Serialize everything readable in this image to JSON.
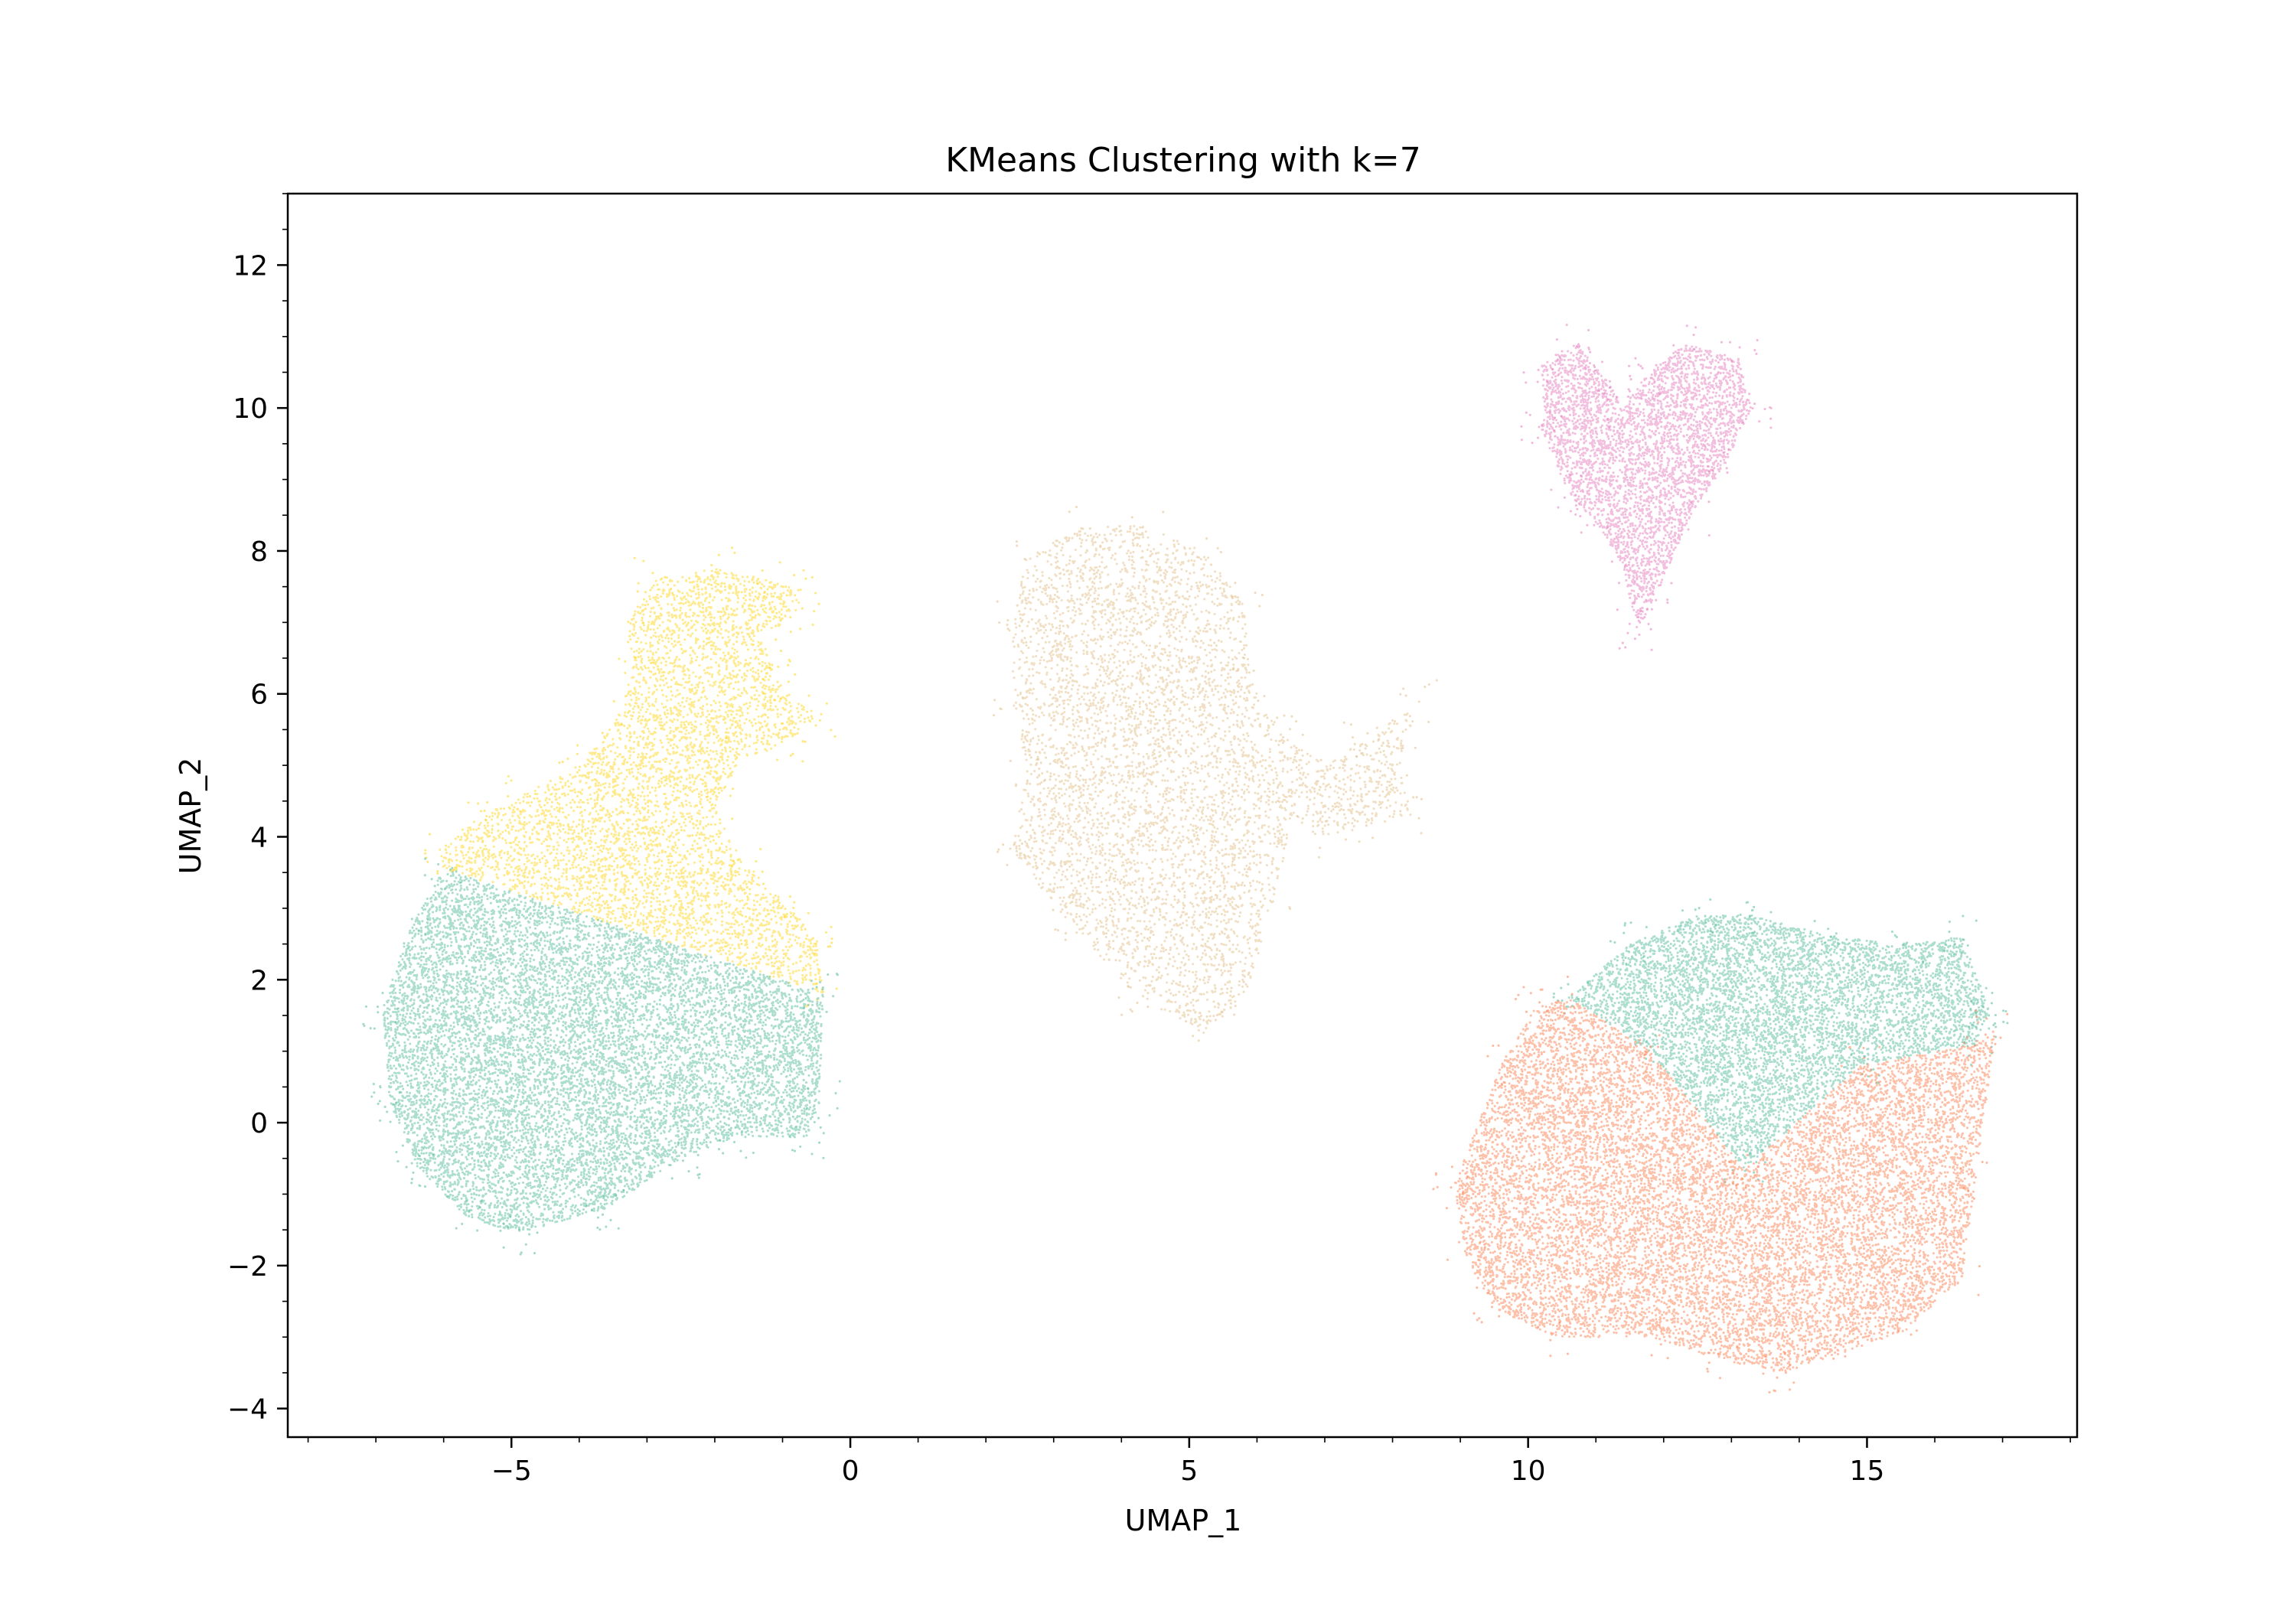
{
  "chart_data": {
    "type": "scatter",
    "title": "KMeans Clustering with k=7",
    "xlabel": "UMAP_1",
    "ylabel": "UMAP_2",
    "xlim": [
      -8.3,
      18.1
    ],
    "ylim": [
      -4.4,
      13.0
    ],
    "xticks": [
      -5,
      0,
      5,
      10,
      15
    ],
    "xtick_labels": [
      "−5",
      "0",
      "5",
      "10",
      "15"
    ],
    "yticks": [
      -4,
      -2,
      0,
      2,
      4,
      6,
      8,
      10,
      12
    ],
    "ytick_labels": [
      "−4",
      "−2",
      "0",
      "2",
      "4",
      "6",
      "8",
      "10",
      "12"
    ],
    "grid": false,
    "legend": "none",
    "point_size": "tiny",
    "series": [
      {
        "color": "#ffd92f",
        "points_approx": 24000,
        "outline": [
          [
            -6.0,
            3.55
          ],
          [
            -6.1,
            3.8
          ],
          [
            -5.6,
            4.2
          ],
          [
            -4.8,
            4.6
          ],
          [
            -4.0,
            5.0
          ],
          [
            -3.5,
            5.6
          ],
          [
            -3.2,
            6.3
          ],
          [
            -3.3,
            7.0
          ],
          [
            -2.9,
            7.6
          ],
          [
            -2.0,
            7.75
          ],
          [
            -1.2,
            7.6
          ],
          [
            -0.7,
            7.5
          ],
          [
            -0.8,
            7.1
          ],
          [
            -1.3,
            6.8
          ],
          [
            -1.1,
            6.2
          ],
          [
            -0.5,
            5.7
          ],
          [
            -0.9,
            5.3
          ],
          [
            -1.6,
            5.1
          ],
          [
            -2.0,
            4.4
          ],
          [
            -1.5,
            3.6
          ],
          [
            -0.9,
            3.0
          ],
          [
            -0.5,
            2.6
          ],
          [
            -0.4,
            1.8
          ],
          [
            -6.0,
            3.55
          ]
        ]
      },
      {
        "color": "#66c2a5",
        "points_approx": 52000,
        "outline": [
          [
            -6.0,
            3.55
          ],
          [
            -6.5,
            2.7
          ],
          [
            -6.9,
            1.6
          ],
          [
            -6.8,
            0.3
          ],
          [
            -6.4,
            -0.6
          ],
          [
            -5.7,
            -1.3
          ],
          [
            -4.9,
            -1.55
          ],
          [
            -3.6,
            -1.2
          ],
          [
            -2.5,
            -0.5
          ],
          [
            -1.7,
            -0.2
          ],
          [
            -0.6,
            -0.2
          ],
          [
            -0.45,
            0.3
          ],
          [
            -0.4,
            1.8
          ],
          [
            -6.0,
            3.55
          ]
        ]
      },
      {
        "color": "#e5c494",
        "points_approx": 26000,
        "outline": [
          [
            2.4,
            7.0
          ],
          [
            2.6,
            7.9
          ],
          [
            3.4,
            8.35
          ],
          [
            4.4,
            8.35
          ],
          [
            5.2,
            8.0
          ],
          [
            5.8,
            7.3
          ],
          [
            5.9,
            6.2
          ],
          [
            6.4,
            5.4
          ],
          [
            7.0,
            5.0
          ],
          [
            7.5,
            5.3
          ],
          [
            8.4,
            5.9
          ],
          [
            8.1,
            5.0
          ],
          [
            8.3,
            4.3
          ],
          [
            7.5,
            4.1
          ],
          [
            6.9,
            4.0
          ],
          [
            6.5,
            4.3
          ],
          [
            6.3,
            3.2
          ],
          [
            5.8,
            1.7
          ],
          [
            5.2,
            1.25
          ],
          [
            4.2,
            1.8
          ],
          [
            3.2,
            2.8
          ],
          [
            2.4,
            3.8
          ],
          [
            2.6,
            5.0
          ],
          [
            2.4,
            5.9
          ],
          [
            2.4,
            7.0
          ]
        ]
      },
      {
        "color": "#e78ac3",
        "points_approx": 18000,
        "outline": [
          [
            10.2,
            9.7
          ],
          [
            10.2,
            10.6
          ],
          [
            10.7,
            10.9
          ],
          [
            11.1,
            10.5
          ],
          [
            11.4,
            10.0
          ],
          [
            11.7,
            10.4
          ],
          [
            12.3,
            10.9
          ],
          [
            13.1,
            10.7
          ],
          [
            13.3,
            10.0
          ],
          [
            12.9,
            9.2
          ],
          [
            12.4,
            8.5
          ],
          [
            11.85,
            7.3
          ],
          [
            11.6,
            6.9
          ],
          [
            11.4,
            7.8
          ],
          [
            11.0,
            8.4
          ],
          [
            10.6,
            8.8
          ],
          [
            10.2,
            9.7
          ]
        ]
      },
      {
        "color": "#66c2a5",
        "points_approx": 30000,
        "outline": [
          [
            10.6,
            1.75
          ],
          [
            11.5,
            2.5
          ],
          [
            12.5,
            2.9
          ],
          [
            13.3,
            2.9
          ],
          [
            14.5,
            2.6
          ],
          [
            15.6,
            2.5
          ],
          [
            16.4,
            2.6
          ],
          [
            16.8,
            1.6
          ],
          [
            16.6,
            1.1
          ],
          [
            14.9,
            0.8
          ],
          [
            13.2,
            -0.65
          ],
          [
            11.8,
            1.0
          ],
          [
            10.6,
            1.75
          ]
        ]
      },
      {
        "color": "#fc8d62",
        "points_approx": 60000,
        "outline": [
          [
            8.9,
            -0.9
          ],
          [
            9.6,
            0.8
          ],
          [
            10.1,
            1.6
          ],
          [
            10.6,
            1.75
          ],
          [
            11.8,
            1.0
          ],
          [
            13.2,
            -0.65
          ],
          [
            14.9,
            0.8
          ],
          [
            16.6,
            1.1
          ],
          [
            16.9,
            1.3
          ],
          [
            16.6,
            -0.8
          ],
          [
            16.4,
            -2.2
          ],
          [
            15.6,
            -2.9
          ],
          [
            14.4,
            -3.3
          ],
          [
            13.7,
            -3.5
          ],
          [
            12.8,
            -3.3
          ],
          [
            11.8,
            -3.0
          ],
          [
            10.4,
            -3.0
          ],
          [
            9.5,
            -2.6
          ],
          [
            9.1,
            -1.9
          ],
          [
            8.9,
            -0.9
          ]
        ]
      }
    ]
  }
}
